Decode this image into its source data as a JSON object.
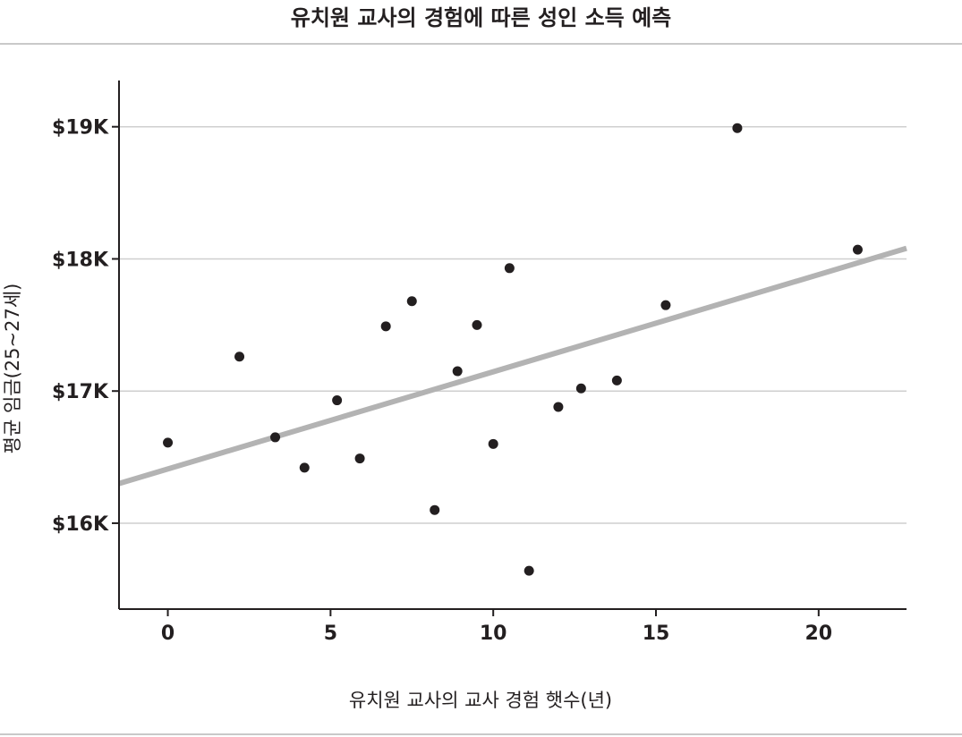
{
  "title": "유치원 교사의 경험에 따른 성인 소득 예측",
  "colors": {
    "point": "#231f20",
    "trend": "#b3b3b3",
    "grid": "#cfcfcf",
    "axis": "#231f20"
  },
  "chart_data": {
    "type": "scatter",
    "title": "유치원 교사의 경험에 따른 성인 소득 예측",
    "xlabel": "유치원 교사의 교사 경험 햇수(년)",
    "ylabel": "평균 임금(25~27세)",
    "xlim": [
      -1.5,
      22.7
    ],
    "ylim": [
      15.35,
      19.35
    ],
    "x_ticks": [
      0,
      5,
      10,
      15,
      20
    ],
    "x_tick_labels": [
      "0",
      "5",
      "10",
      "15",
      "20"
    ],
    "y_ticks": [
      16,
      17,
      18,
      19
    ],
    "y_tick_labels": [
      "$16K",
      "$17K",
      "$18K",
      "$19K"
    ],
    "grid": "horizontal",
    "points": [
      {
        "x": 0.0,
        "y": 16.61
      },
      {
        "x": 2.2,
        "y": 17.26
      },
      {
        "x": 3.3,
        "y": 16.65
      },
      {
        "x": 4.2,
        "y": 16.42
      },
      {
        "x": 5.2,
        "y": 16.93
      },
      {
        "x": 5.9,
        "y": 16.49
      },
      {
        "x": 6.7,
        "y": 17.49
      },
      {
        "x": 7.5,
        "y": 17.68
      },
      {
        "x": 8.2,
        "y": 16.1
      },
      {
        "x": 8.9,
        "y": 17.15
      },
      {
        "x": 9.5,
        "y": 17.5
      },
      {
        "x": 10.0,
        "y": 16.6
      },
      {
        "x": 10.5,
        "y": 17.93
      },
      {
        "x": 11.1,
        "y": 15.64
      },
      {
        "x": 12.0,
        "y": 16.88
      },
      {
        "x": 12.7,
        "y": 17.02
      },
      {
        "x": 13.8,
        "y": 17.08
      },
      {
        "x": 15.3,
        "y": 17.65
      },
      {
        "x": 17.5,
        "y": 18.99
      },
      {
        "x": 21.2,
        "y": 18.07
      }
    ],
    "trendline": {
      "x": [
        -1.5,
        22.7
      ],
      "y": [
        16.3,
        18.08
      ]
    }
  }
}
